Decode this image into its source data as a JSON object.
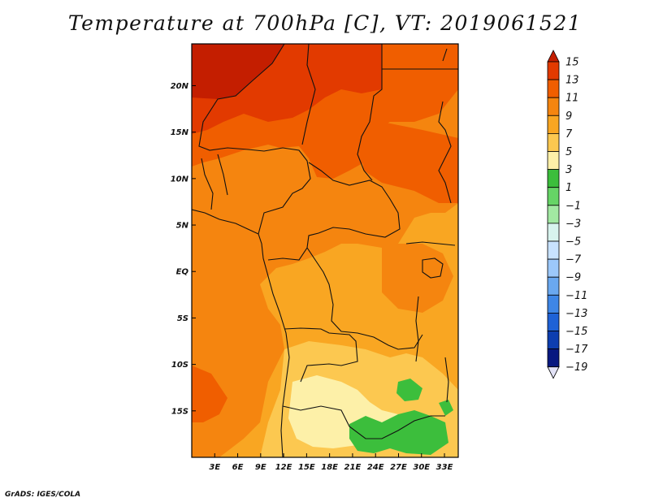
{
  "title": "Temperature at 700hPa [C], VT: 2019061521",
  "credit": "GrADS: IGES/COLA",
  "map": {
    "lon_range": [
      0,
      34.8
    ],
    "lat_range": [
      -20,
      24.5
    ],
    "lat_ticks": [
      {
        "v": 20,
        "label": "20N"
      },
      {
        "v": 15,
        "label": "15N"
      },
      {
        "v": 10,
        "label": "10N"
      },
      {
        "v": 5,
        "label": "5N"
      },
      {
        "v": 0,
        "label": "EQ"
      },
      {
        "v": -5,
        "label": "5S"
      },
      {
        "v": -10,
        "label": "10S"
      },
      {
        "v": -15,
        "label": "15S"
      }
    ],
    "lon_ticks": [
      {
        "v": 3,
        "label": "3E"
      },
      {
        "v": 6,
        "label": "6E"
      },
      {
        "v": 9,
        "label": "9E"
      },
      {
        "v": 12,
        "label": "12E"
      },
      {
        "v": 15,
        "label": "15E"
      },
      {
        "v": 18,
        "label": "18E"
      },
      {
        "v": 21,
        "label": "21E"
      },
      {
        "v": 24,
        "label": "24E"
      },
      {
        "v": 27,
        "label": "27E"
      },
      {
        "v": 30,
        "label": "30E"
      },
      {
        "v": 33,
        "label": "33E"
      }
    ]
  },
  "legend": {
    "levels": [
      15,
      13,
      11,
      9,
      7,
      5,
      3,
      1,
      -1,
      -3,
      -5,
      -7,
      -9,
      -11,
      -13,
      -15,
      -17,
      -19
    ],
    "labels": [
      "15",
      "13",
      "11",
      "9",
      "7",
      "5",
      "3",
      "1",
      "−1",
      "−3",
      "−5",
      "−7",
      "−9",
      "−11",
      "−13",
      "−15",
      "−17",
      "−19"
    ],
    "colors": [
      "#c41e00",
      "#e23a00",
      "#f05e00",
      "#f5850f",
      "#f9a622",
      "#fcc850",
      "#fdf0a8",
      "#3cbe3c",
      "#66d466",
      "#a2e8a2",
      "#d8f4ee",
      "#c8e2ff",
      "#9cc8fa",
      "#6aa8f0",
      "#3e86e6",
      "#1e62d6",
      "#0d3eb0",
      "#081880",
      "#e2e2f6"
    ]
  }
}
